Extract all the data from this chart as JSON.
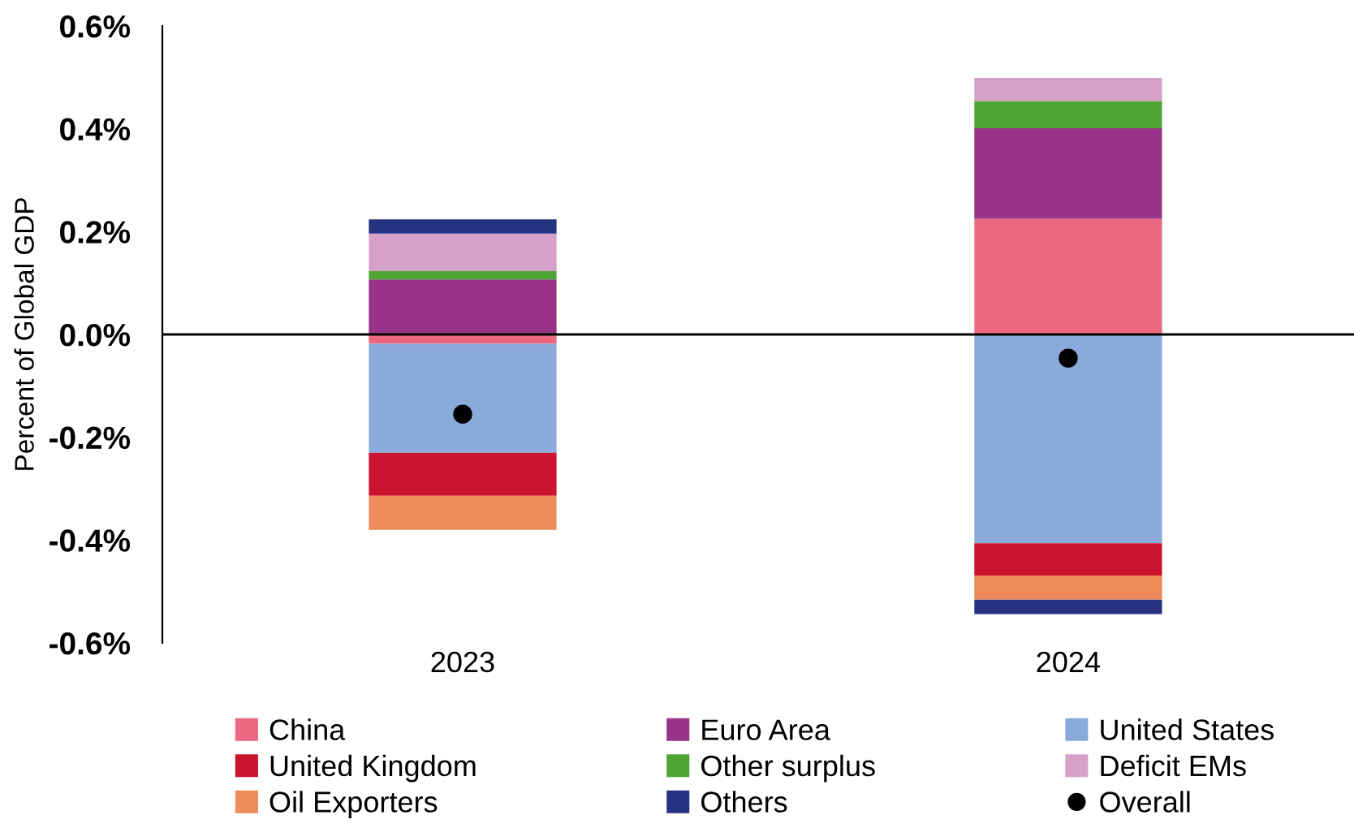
{
  "chart_data": {
    "type": "bar",
    "stacked": true,
    "ylabel": "Percent of Global GDP",
    "categories": [
      "2023",
      "2024"
    ],
    "ylim": [
      -0.6,
      0.6
    ],
    "yticks": [
      {
        "value": -0.6,
        "label": "-0.6%"
      },
      {
        "value": -0.4,
        "label": "-0.4%"
      },
      {
        "value": -0.2,
        "label": "-0.2%"
      },
      {
        "value": 0,
        "label": "0.0%"
      },
      {
        "value": 0.2,
        "label": "0.2%"
      },
      {
        "value": 0.4,
        "label": "0.4%"
      },
      {
        "value": 0.6,
        "label": "0.6%"
      }
    ],
    "legend": "bottom",
    "ref_lines": [
      {
        "axis": "y",
        "value": 0,
        "color": "#000000"
      }
    ],
    "series": [
      {
        "name": "China",
        "color": "#ec6880",
        "values": [
          -0.018,
          0.225
        ]
      },
      {
        "name": "Euro Area",
        "color": "#983388",
        "values": [
          0.107,
          0.176
        ]
      },
      {
        "name": "United States",
        "color": "#8aaadb",
        "values": [
          -0.212,
          -0.406
        ]
      },
      {
        "name": "United Kingdom",
        "color": "#cc1430",
        "values": [
          -0.084,
          -0.063
        ]
      },
      {
        "name": "Other surplus",
        "color": "#4ea535",
        "values": [
          0.016,
          0.053
        ]
      },
      {
        "name": "Deficit EMs",
        "color": "#d6a0c8",
        "values": [
          0.073,
          0.045
        ]
      },
      {
        "name": "Oil Exporters",
        "color": "#ec8c5a",
        "values": [
          -0.066,
          -0.047
        ]
      },
      {
        "name": "Others",
        "color": "#283282",
        "values": [
          0.028,
          -0.028
        ]
      },
      {
        "name": "Overall",
        "type": "scatter",
        "marker": "circle",
        "color": "#000000",
        "values": [
          -0.155,
          -0.046
        ]
      }
    ]
  }
}
